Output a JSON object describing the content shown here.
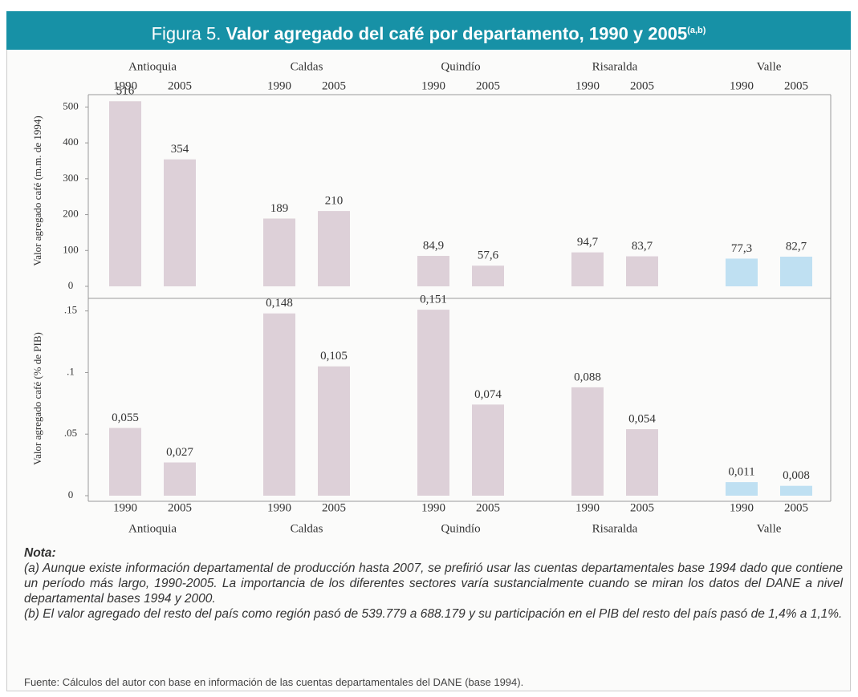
{
  "header": {
    "label": "Figura 5.",
    "title": "Valor agregado del café por departamento, 1990 y 2005",
    "superscript": "(a,b)"
  },
  "chart_data": [
    {
      "type": "bar",
      "ylabel": "Valor agregado café (m.m. de 1994)",
      "groups": [
        "Antioquia",
        "Caldas",
        "Quindío",
        "Risaralda",
        "Valle"
      ],
      "categories": [
        "1990",
        "2005",
        "1990",
        "2005",
        "1990",
        "2005",
        "1990",
        "2005",
        "1990",
        "2005"
      ],
      "values": [
        516,
        354,
        189,
        210,
        84.9,
        57.6,
        94.7,
        83.7,
        77.3,
        82.7
      ],
      "value_labels": [
        "516",
        "354",
        "189",
        "210",
        "84,9",
        "57,6",
        "94,7",
        "83,7",
        "77,3",
        "82,7"
      ],
      "colors": [
        "#ddd0d8",
        "#ddd0d8",
        "#ddd0d8",
        "#ddd0d8",
        "#bfe0f2"
      ],
      "ylim": [
        0,
        530
      ],
      "yticks": [
        0,
        100,
        200,
        300,
        400,
        500
      ]
    },
    {
      "type": "bar",
      "ylabel": "Valor agregado café (% de PIB)",
      "groups": [
        "Antioquia",
        "Caldas",
        "Quindío",
        "Risaralda",
        "Valle"
      ],
      "categories": [
        "1990",
        "2005",
        "1990",
        "2005",
        "1990",
        "2005",
        "1990",
        "2005",
        "1990",
        "2005"
      ],
      "values": [
        0.055,
        0.027,
        0.148,
        0.105,
        0.151,
        0.074,
        0.088,
        0.054,
        0.011,
        0.008
      ],
      "value_labels": [
        "0,055",
        "0,027",
        "0,148",
        "0,105",
        "0,151",
        "0,074",
        "0,088",
        "0,054",
        "0,011",
        "0,008"
      ],
      "colors": [
        "#ddd0d8",
        "#ddd0d8",
        "#ddd0d8",
        "#ddd0d8",
        "#bfe0f2"
      ],
      "ylim": [
        0,
        0.155
      ],
      "yticks": [
        0,
        {
          "value": 0.05,
          "label": ".05"
        },
        {
          "value": 0.1,
          "label": ".1"
        },
        {
          "value": 0.15,
          "label": ".15"
        }
      ]
    }
  ],
  "notes": {
    "heading": "Nota:",
    "items": [
      "(a) Aunque existe información departamental de producción hasta 2007, se prefirió usar las cuentas departamentales base 1994 dado que contiene un período más largo, 1990-2005. La importancia de los diferentes sectores varía sustancialmente cuando se miran los datos del DANE a nivel departamental bases 1994 y 2000.",
      "(b) El valor agregado del resto del país como región pasó de 539.779 a 688.179 y su participación en el PIB del resto del país pasó de 1,4% a 1,1%."
    ],
    "source": "Fuente: Cálculos del autor con base en información de las cuentas departamentales del DANE (base 1994)."
  }
}
